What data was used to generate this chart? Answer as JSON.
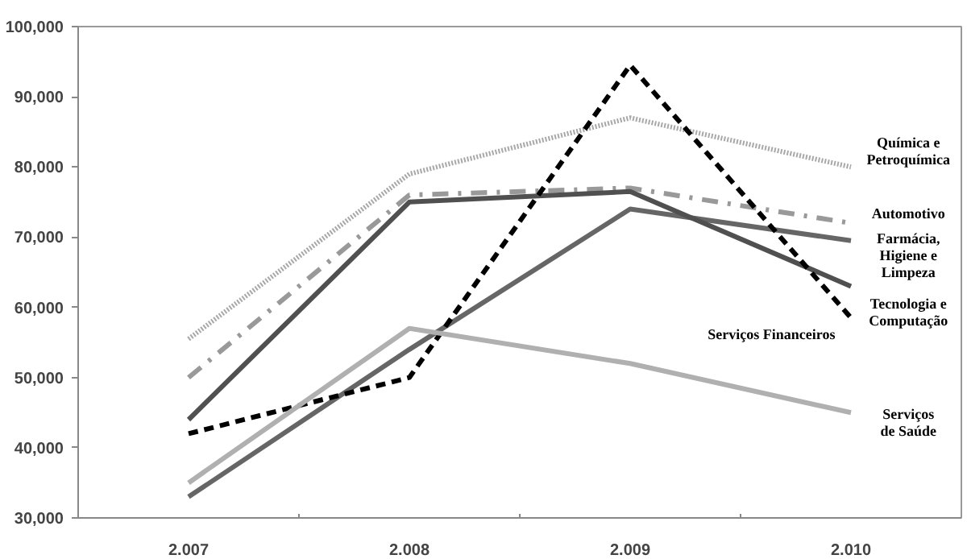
{
  "chart_data": {
    "type": "line",
    "categories": [
      "2.007",
      "2.008",
      "2.009",
      "2.010"
    ],
    "ylim": [
      30000,
      100000
    ],
    "yticks": [
      {
        "value": 30000,
        "label": "30,000"
      },
      {
        "value": 40000,
        "label": "40,000"
      },
      {
        "value": 50000,
        "label": "50,000"
      },
      {
        "value": 60000,
        "label": "60,000"
      },
      {
        "value": 70000,
        "label": "70,000"
      },
      {
        "value": 80000,
        "label": "80,000"
      },
      {
        "value": 90000,
        "label": "90,000"
      },
      {
        "value": 100000,
        "label": "100,000"
      }
    ],
    "grid": false,
    "legend": false,
    "marker": "none",
    "series": [
      {
        "name": "Química e\nPetroquímica",
        "color": "#a8a8a8",
        "line_style": "dotted",
        "values": [
          55500,
          79000,
          87000,
          80000
        ]
      },
      {
        "name": "Automotivo",
        "color": "#999999",
        "line_style": "dashdot",
        "values": [
          50000,
          76000,
          77000,
          72000
        ]
      },
      {
        "name": "Farmácia,\nHigiene e\nLimpeza",
        "color": "#666666",
        "line_style": "solid",
        "values": [
          33000,
          54000,
          74000,
          69500
        ]
      },
      {
        "name": "Tecnologia e\nComputação",
        "color": "#505050",
        "line_style": "solid",
        "values": [
          44000,
          75000,
          76500,
          63000
        ]
      },
      {
        "name": "Serviços Financeiros",
        "color": "#000000",
        "line_style": "dashed",
        "values": [
          42000,
          50000,
          94500,
          58500
        ]
      },
      {
        "name": "Serviços\nde Saúde",
        "color": "#b0b0b0",
        "line_style": "solid",
        "values": [
          35000,
          57000,
          52000,
          45000
        ]
      }
    ]
  }
}
